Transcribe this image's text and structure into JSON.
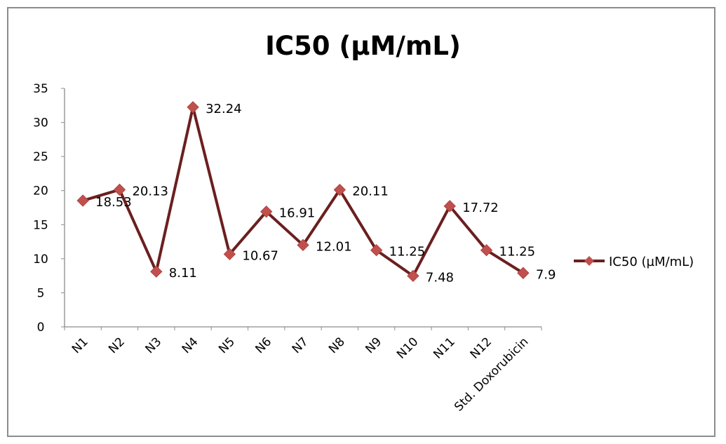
{
  "chart_data": {
    "type": "line",
    "title": "IC50 (µM/mL)",
    "categories": [
      "N1",
      "N2",
      "N3",
      "N4",
      "N5",
      "N6",
      "N7",
      "N8",
      "N9",
      "N10",
      "N11",
      "N12",
      "Std. Doxorubicin"
    ],
    "series": [
      {
        "name": "IC50 (µM/mL)",
        "values": [
          18.53,
          20.13,
          8.11,
          32.24,
          10.67,
          16.91,
          12.01,
          20.11,
          11.25,
          7.48,
          17.72,
          11.25,
          7.9
        ],
        "data_labels": [
          "18.53",
          "20.13",
          "8.11",
          "32.24",
          "10.67",
          "16.91",
          "12.01",
          "20.11",
          "11.25",
          "7.48",
          "17.72",
          "11.25",
          "7.9"
        ]
      }
    ],
    "y_ticks": [
      "0",
      "5",
      "10",
      "15",
      "20",
      "25",
      "30",
      "35"
    ],
    "ylim": [
      0,
      35
    ],
    "grid": false,
    "legend_position": "right",
    "line_color": "#6b1f1f",
    "marker_color": "#c0504d"
  }
}
